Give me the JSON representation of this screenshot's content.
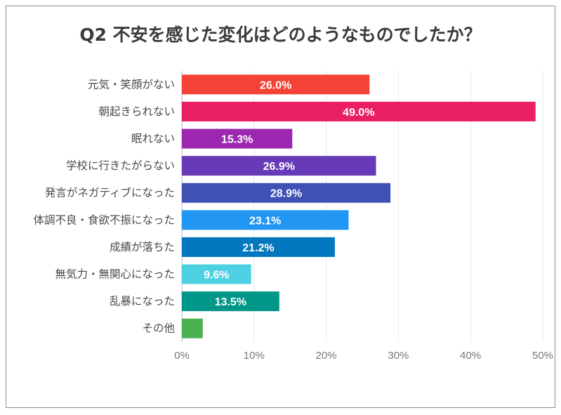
{
  "chart_data": {
    "type": "bar",
    "orientation": "horizontal",
    "title": "Q2 不安を感じた変化はどのようなものでしたか？",
    "xlabel": "",
    "ylabel": "",
    "xlim": [
      0,
      50
    ],
    "grid": true,
    "x_ticks": [
      "0%",
      "10%",
      "20%",
      "30%",
      "40%",
      "50%"
    ],
    "categories": [
      "元気・笑顔がない",
      "朝起きられない",
      "眠れない",
      "学校に行きたがらない",
      "発言がネガティブになった",
      "体調不良・食欲不振になった",
      "成績が落ちた",
      "無気力・無関心になった",
      "乱暴になった",
      "その他"
    ],
    "values": [
      26.0,
      49.0,
      15.3,
      26.9,
      28.9,
      23.1,
      21.2,
      9.6,
      13.5,
      2.9
    ],
    "value_labels": [
      "26.0%",
      "49.0%",
      "15.3%",
      "26.9%",
      "28.9%",
      "23.1%",
      "21.2%",
      "9.6%",
      "13.5%",
      ""
    ],
    "colors": [
      "#f44336",
      "#e91e63",
      "#9c27b0",
      "#673ab7",
      "#3f51b5",
      "#2196f3",
      "#0277bd",
      "#4dd0e1",
      "#009688",
      "#4caf50"
    ]
  }
}
